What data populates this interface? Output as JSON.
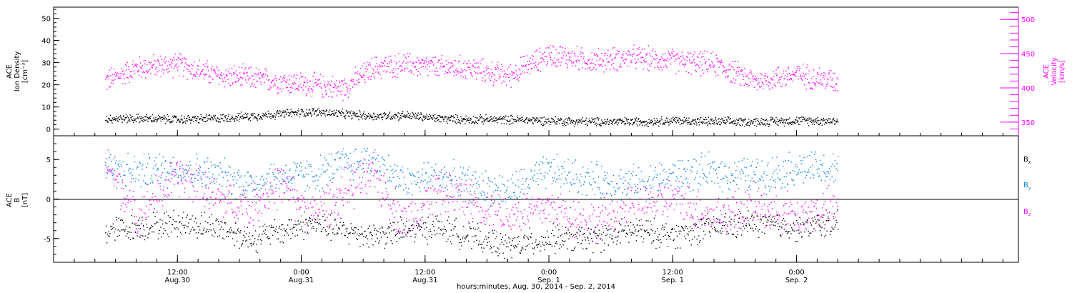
{
  "chart_data": [
    {
      "type": "scatter",
      "ylabel_lines": [
        "ACE",
        "Ion Density",
        "[cm⁻³]"
      ],
      "y2label_lines": [
        "ACE",
        "Velocity",
        "[km/s]"
      ],
      "ylim": [
        -3,
        55
      ],
      "y2lim": [
        330,
        518
      ],
      "yticks": [
        "0",
        "10",
        "20",
        "30",
        "40",
        "50"
      ],
      "y2ticks": [
        "350",
        "400",
        "450",
        "500"
      ],
      "series": [
        {
          "color": "#000000",
          "axis": "left",
          "x": [
            "Aug.30 05:00",
            "Aug.30 08:00",
            "Aug.30 12:00",
            "Aug.30 16:00",
            "Aug.30 19:00",
            "Aug.30 22:00",
            "Aug.31 01:00",
            "Aug.31 04:00",
            "Aug.31 07:00",
            "Aug.31 10:00",
            "Aug.31 13:00",
            "Aug.31 16:00",
            "Aug.31 20:00",
            "Sep.1 00:00",
            "Sep.1 04:00",
            "Sep.1 08:00",
            "Sep.1 12:00",
            "Sep.1 16:00",
            "Sep.1 20:00",
            "Sep.2 00:00",
            "Sep.2 04:00"
          ],
          "y": [
            5,
            5,
            4.5,
            5,
            6,
            7,
            8,
            7,
            6,
            6.5,
            5,
            4.5,
            4.5,
            4,
            3.5,
            3.5,
            4,
            3.5,
            3.5,
            4,
            4
          ]
        },
        {
          "color": "#ff00ff",
          "axis": "right",
          "x": [
            "Aug.30 05:00",
            "Aug.30 08:00",
            "Aug.30 12:00",
            "Aug.30 16:00",
            "Aug.30 19:00",
            "Aug.30 22:00",
            "Aug.31 01:00",
            "Aug.31 04:00",
            "Aug.31 07:00",
            "Aug.31 10:00",
            "Aug.31 13:00",
            "Aug.31 16:00",
            "Aug.31 20:00",
            "Sep.1 00:00",
            "Sep.1 04:00",
            "Sep.1 08:00",
            "Sep.1 12:00",
            "Sep.1 16:00",
            "Sep.1 20:00",
            "Sep.2 00:00",
            "Sep.2 04:00"
          ],
          "y": [
            410,
            430,
            435,
            418,
            415,
            410,
            405,
            400,
            430,
            435,
            430,
            430,
            418,
            450,
            440,
            445,
            440,
            435,
            410,
            420,
            410
          ]
        }
      ]
    },
    {
      "type": "scatter",
      "ylabel_lines": [
        "ACE",
        "B",
        "[nT]"
      ],
      "ylim": [
        -8,
        8
      ],
      "yticks": [
        "-5",
        "0",
        "5"
      ],
      "legend": [
        {
          "label": "B",
          "sub": "x",
          "color": "#000000"
        },
        {
          "label": "B",
          "sub": "y",
          "color": "#0a80e8"
        },
        {
          "label": "B",
          "sub": "z",
          "color": "#ff00ff"
        }
      ],
      "legend_position": "right",
      "series": [
        {
          "color": "#000000",
          "x": [
            "Aug.30 05:00",
            "Aug.30 08:00",
            "Aug.30 12:00",
            "Aug.30 16:00",
            "Aug.30 19:00",
            "Aug.30 22:00",
            "Aug.31 01:00",
            "Aug.31 04:00",
            "Aug.31 07:00",
            "Aug.31 10:00",
            "Aug.31 13:00",
            "Aug.31 16:00",
            "Aug.31 20:00",
            "Sep.1 00:00",
            "Sep.1 04:00",
            "Sep.1 08:00",
            "Sep.1 12:00",
            "Sep.1 16:00",
            "Sep.1 20:00",
            "Sep.2 00:00",
            "Sep.2 04:00"
          ],
          "y": [
            -4,
            -3.5,
            -3,
            -3.5,
            -5,
            -4,
            -3,
            -4,
            -4.5,
            -4,
            -3.5,
            -4.5,
            -6,
            -5,
            -5,
            -4,
            -4.5,
            -3.5,
            -3,
            -3.5,
            -3
          ]
        },
        {
          "color": "#0a80e8",
          "x": [
            "Aug.30 05:00",
            "Aug.30 08:00",
            "Aug.30 12:00",
            "Aug.30 16:00",
            "Aug.30 19:00",
            "Aug.30 22:00",
            "Aug.31 01:00",
            "Aug.31 04:00",
            "Aug.31 07:00",
            "Aug.31 10:00",
            "Aug.31 13:00",
            "Aug.31 16:00",
            "Aug.31 20:00",
            "Sep.1 00:00",
            "Sep.1 04:00",
            "Sep.1 08:00",
            "Sep.1 12:00",
            "Sep.1 16:00",
            "Sep.1 20:00",
            "Sep.2 00:00",
            "Sep.2 04:00"
          ],
          "y": [
            4,
            3.5,
            4,
            3,
            2,
            3,
            3,
            4.5,
            5,
            2,
            3,
            2,
            1,
            3.5,
            2.5,
            2,
            3,
            3.5,
            3,
            4,
            3.5
          ]
        },
        {
          "color": "#ff00ff",
          "x": [
            "Aug.30 05:00",
            "Aug.30 08:00",
            "Aug.30 12:00",
            "Aug.30 16:00",
            "Aug.30 19:00",
            "Aug.30 22:00",
            "Aug.31 01:00",
            "Aug.31 04:00",
            "Aug.31 07:00",
            "Aug.31 10:00",
            "Aug.31 13:00",
            "Aug.31 16:00",
            "Aug.31 20:00",
            "Sep.1 00:00",
            "Sep.1 04:00",
            "Sep.1 08:00",
            "Sep.1 12:00",
            "Sep.1 16:00",
            "Sep.1 20:00",
            "Sep.2 00:00",
            "Sep.2 04:00"
          ],
          "y": [
            5,
            -2,
            3,
            0,
            -1,
            2,
            -2,
            1,
            3,
            -3,
            1,
            0,
            -2,
            -1,
            -3,
            -1,
            0,
            -2,
            -1,
            -2,
            -1
          ]
        }
      ]
    }
  ],
  "x_axis": {
    "title": "hours:minutes, Aug. 30, 2014 - Sep.  2, 2014",
    "ticks": [
      {
        "time": "12:00",
        "day": "Aug.30"
      },
      {
        "time": "0:00",
        "day": "Aug.31"
      },
      {
        "time": "12:00",
        "day": "Aug.31"
      },
      {
        "time": "0:00",
        "day": "Sep. 1"
      },
      {
        "time": "12:00",
        "day": "Sep. 1"
      },
      {
        "time": "0:00",
        "day": "Sep. 2"
      }
    ]
  },
  "colors": {
    "density": "#000000",
    "velocity": "#ff00ff",
    "bx": "#000000",
    "by": "#0a80e8",
    "bz": "#ff00ff",
    "frame": "#000000"
  }
}
